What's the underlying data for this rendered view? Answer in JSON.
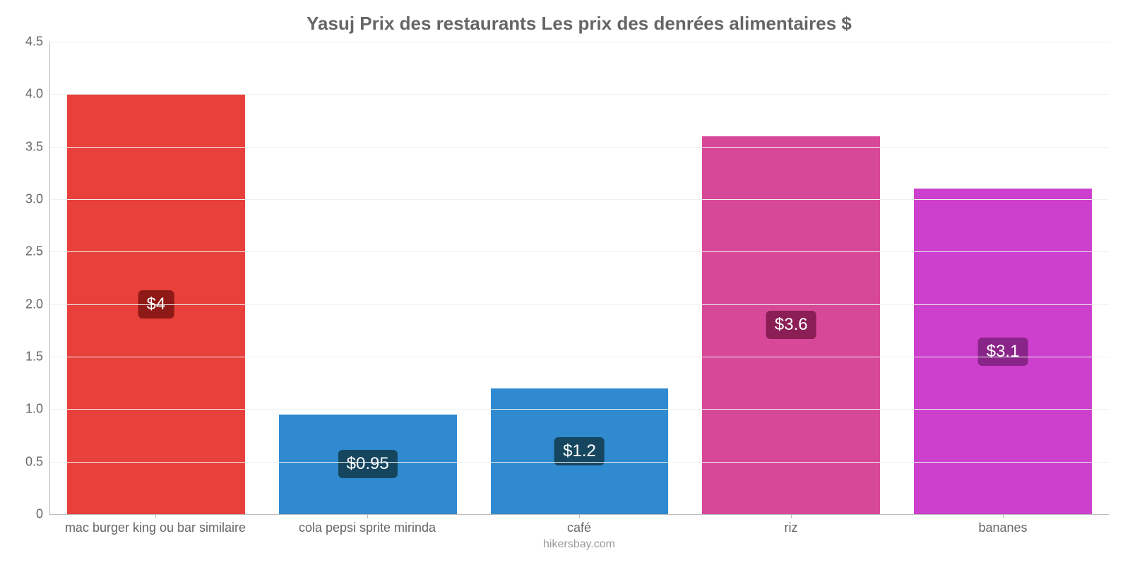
{
  "chart": {
    "type": "bar",
    "title": "Yasuj Prix des restaurants Les prix des denrées alimentaires $",
    "title_fontsize": 26,
    "title_color": "#666666",
    "background_color": "#ffffff",
    "grid_color": "#f0f0f0",
    "axis_color": "#bbbbbb",
    "tick_label_color": "#666666",
    "tick_label_fontsize": 18,
    "ylim": [
      0,
      4.5
    ],
    "ytick_step": 0.5,
    "yticks": [
      "0",
      "0.5",
      "1.0",
      "1.5",
      "2.0",
      "2.5",
      "3.0",
      "3.5",
      "4.0",
      "4.5"
    ],
    "bar_width": 0.84,
    "categories": [
      "mac burger king ou bar similaire",
      "cola pepsi sprite mirinda",
      "café",
      "riz",
      "bananes"
    ],
    "values": [
      4.0,
      0.95,
      1.2,
      3.6,
      3.1
    ],
    "value_labels": [
      "$4",
      "$0.95",
      "$1.2",
      "$3.6",
      "$3.1"
    ],
    "bar_colors": [
      "#e8403a",
      "#2f8ad0",
      "#2f8ad0",
      "#d84898",
      "#cd3fcd"
    ],
    "label_bg_colors": [
      "#8f1916",
      "#16465f",
      "#16465f",
      "#8a1e55",
      "#892489"
    ],
    "value_label_fontsize": 24,
    "value_label_color": "#ffffff",
    "attribution": "hikersbay.com",
    "attribution_color": "#999999",
    "attribution_fontsize": 16
  }
}
